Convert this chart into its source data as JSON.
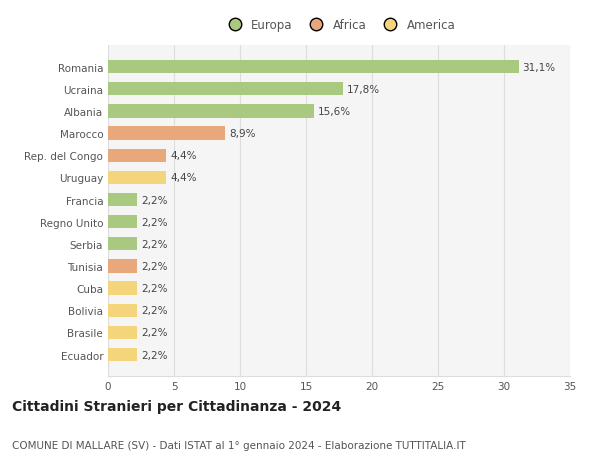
{
  "countries": [
    "Romania",
    "Ucraina",
    "Albania",
    "Marocco",
    "Rep. del Congo",
    "Uruguay",
    "Francia",
    "Regno Unito",
    "Serbia",
    "Tunisia",
    "Cuba",
    "Bolivia",
    "Brasile",
    "Ecuador"
  ],
  "values": [
    31.1,
    17.8,
    15.6,
    8.9,
    4.4,
    4.4,
    2.2,
    2.2,
    2.2,
    2.2,
    2.2,
    2.2,
    2.2,
    2.2
  ],
  "labels": [
    "31,1%",
    "17,8%",
    "15,6%",
    "8,9%",
    "4,4%",
    "4,4%",
    "2,2%",
    "2,2%",
    "2,2%",
    "2,2%",
    "2,2%",
    "2,2%",
    "2,2%",
    "2,2%"
  ],
  "continents": [
    "Europa",
    "Europa",
    "Europa",
    "Africa",
    "Africa",
    "America",
    "Europa",
    "Europa",
    "Europa",
    "Africa",
    "America",
    "America",
    "America",
    "America"
  ],
  "colors": {
    "Europa": "#a8c97f",
    "Africa": "#e8a87c",
    "America": "#f5d57c"
  },
  "legend_labels": [
    "Europa",
    "Africa",
    "America"
  ],
  "xlim": [
    0,
    35
  ],
  "xticks": [
    0,
    5,
    10,
    15,
    20,
    25,
    30,
    35
  ],
  "title": "Cittadini Stranieri per Cittadinanza - 2024",
  "subtitle": "COMUNE DI MALLARE (SV) - Dati ISTAT al 1° gennaio 2024 - Elaborazione TUTTITALIA.IT",
  "background_color": "#ffffff",
  "plot_background": "#f5f5f5",
  "grid_color": "#dddddd",
  "bar_height": 0.6,
  "title_fontsize": 10,
  "subtitle_fontsize": 7.5,
  "label_fontsize": 7.5,
  "tick_fontsize": 7.5,
  "legend_fontsize": 8.5
}
